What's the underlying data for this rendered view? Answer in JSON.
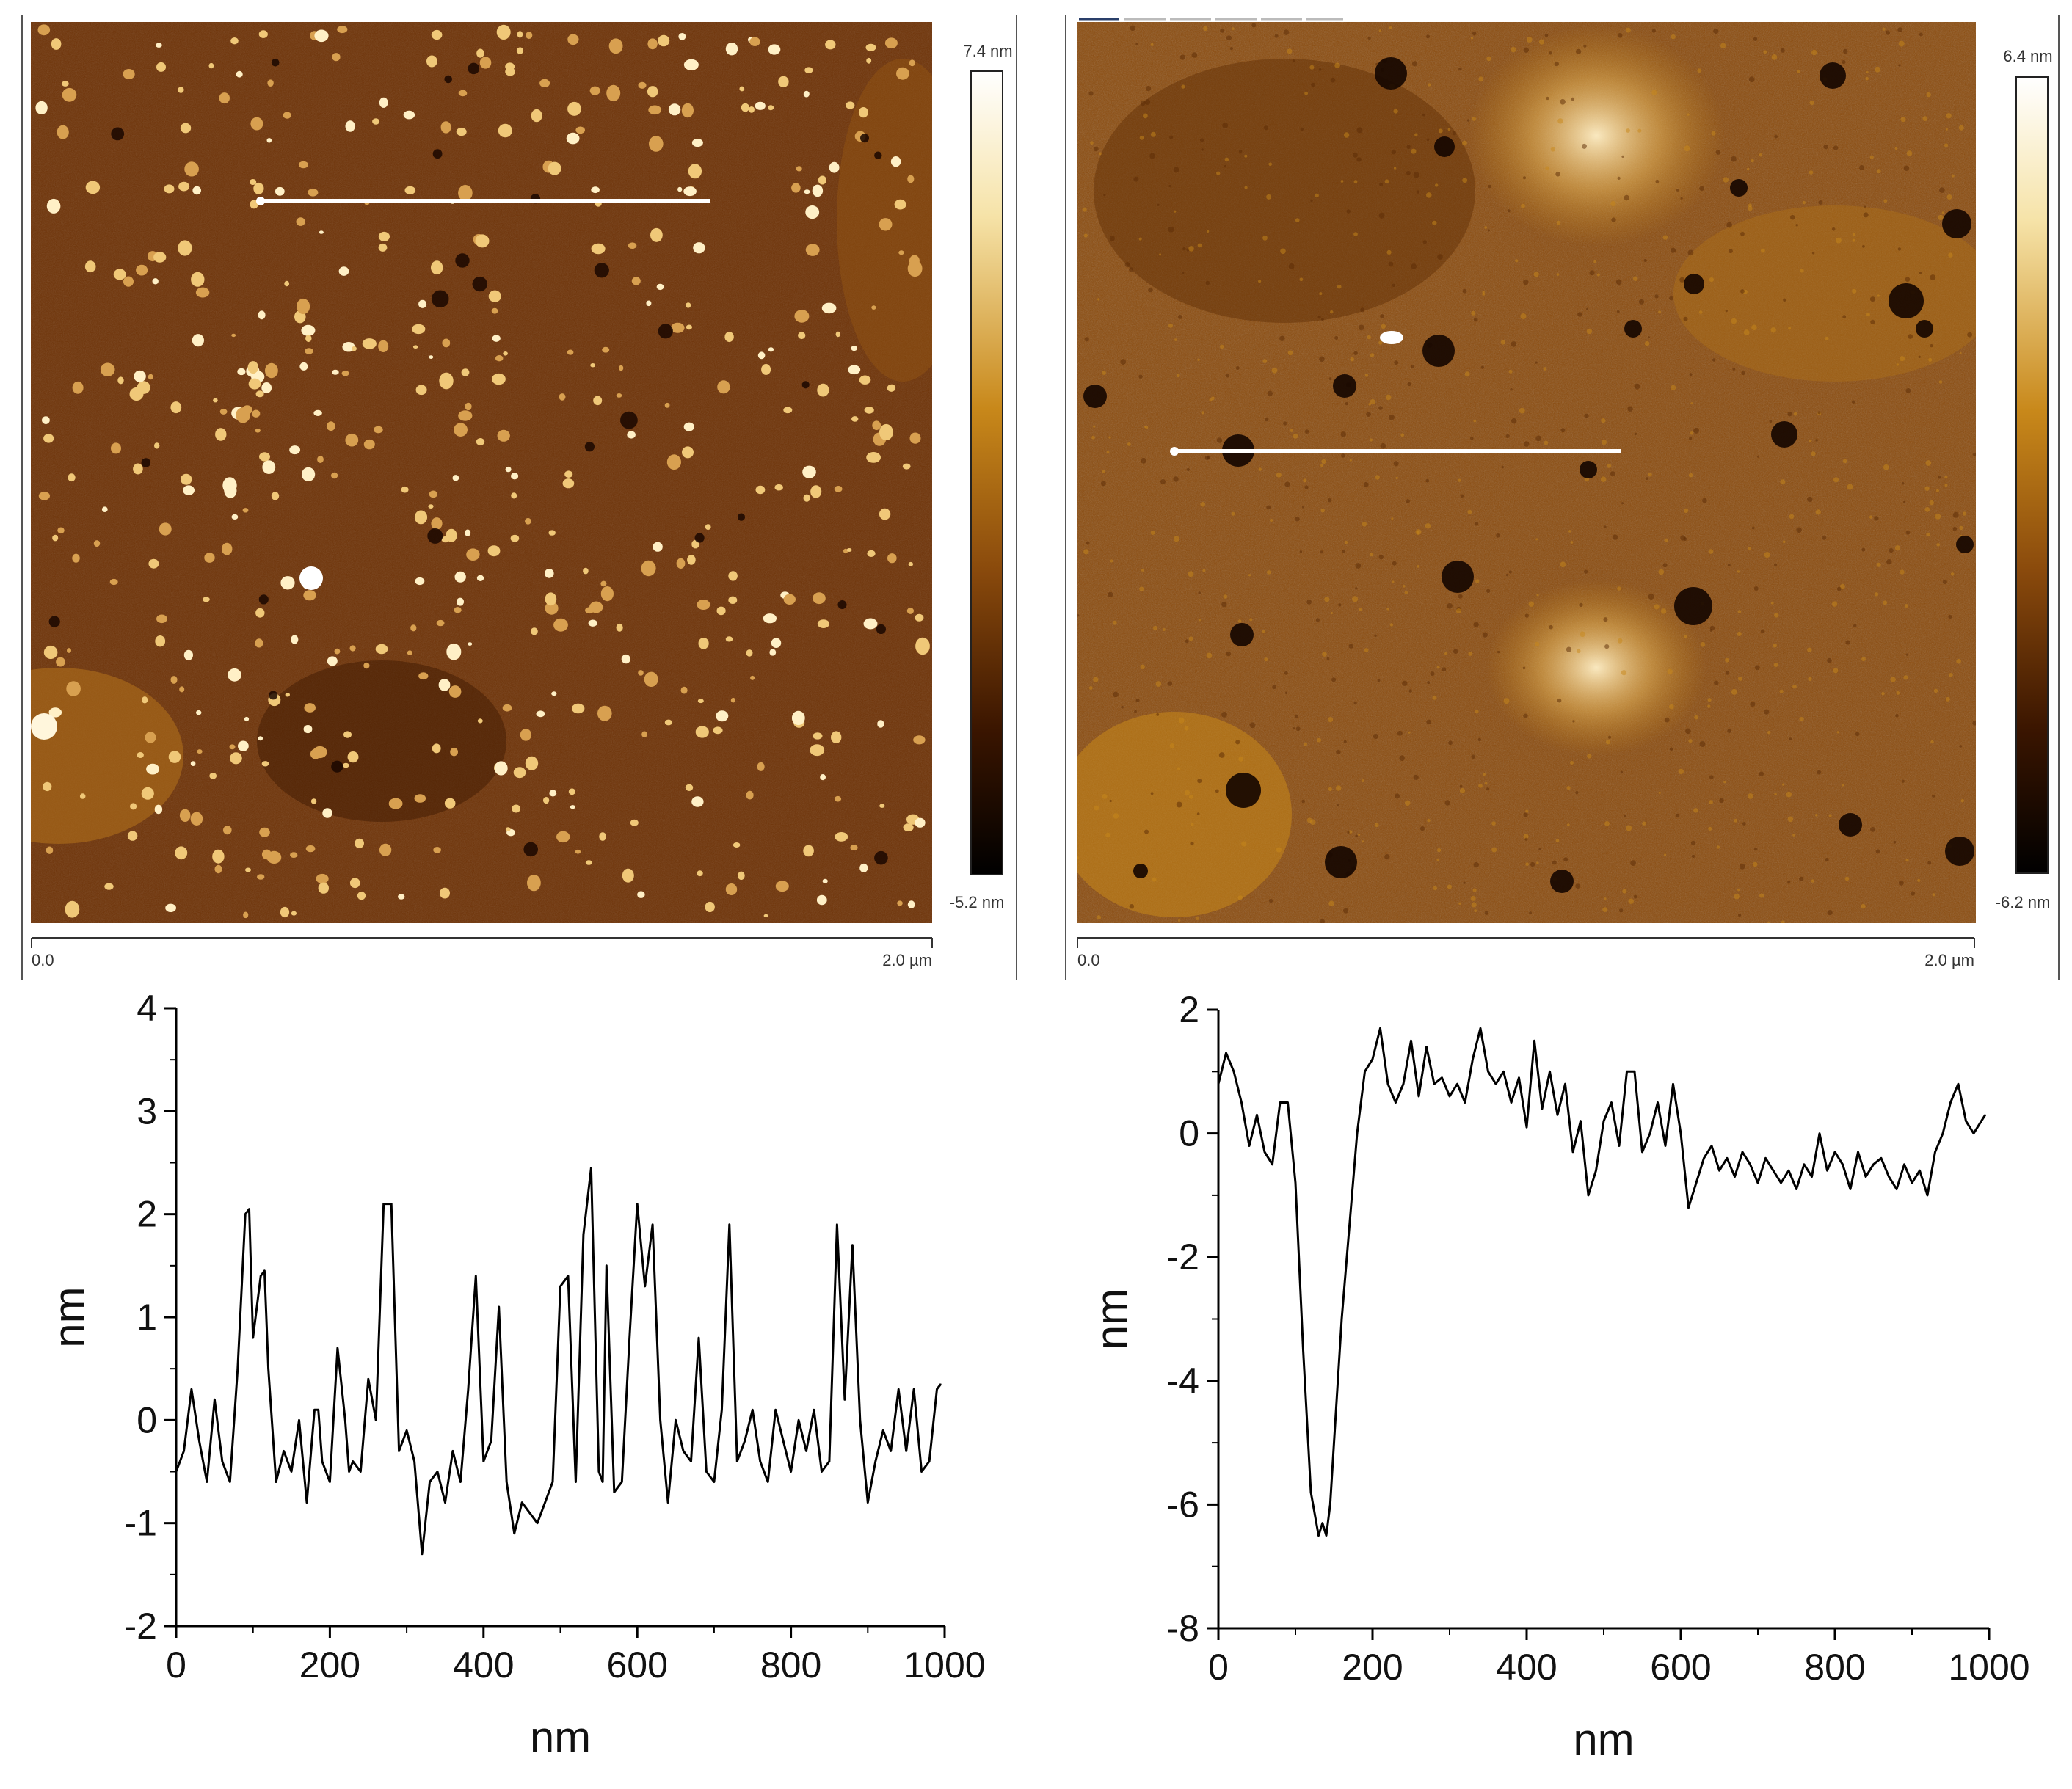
{
  "afm_images": [
    {
      "name": "left",
      "colorbar_max": "7.4 nm",
      "colorbar_min": "-5.2 nm",
      "scale_start": "0.0",
      "scale_end": "2.0 µm",
      "base_color": "#6e3206",
      "dark_color": "#1a0700",
      "bright_color": "#fff4d0",
      "feature": "grains"
    },
    {
      "name": "right",
      "colorbar_max": "6.4 nm",
      "colorbar_min": "-6.2 nm",
      "scale_start": "0.0",
      "scale_end": "2.0 µm",
      "base_color": "#8a4a0c",
      "dark_color": "#1a0700",
      "bright_color": "#fff4d0",
      "feature": "pits"
    }
  ],
  "chart_data": [
    {
      "type": "line",
      "xlabel": "nm",
      "ylabel": "nm",
      "xlim": [
        0,
        1000
      ],
      "ylim": [
        -2,
        4
      ],
      "xticks": [
        "0",
        "200",
        "400",
        "600",
        "800",
        "1000"
      ],
      "yticks": [
        "-2",
        "-1",
        "0",
        "1",
        "2",
        "3",
        "4"
      ],
      "x": [
        0,
        10,
        20,
        30,
        40,
        50,
        60,
        70,
        80,
        90,
        95,
        100,
        110,
        115,
        120,
        130,
        140,
        150,
        160,
        170,
        180,
        185,
        190,
        200,
        210,
        220,
        225,
        230,
        240,
        250,
        260,
        270,
        280,
        290,
        295,
        300,
        310,
        320,
        330,
        340,
        350,
        360,
        370,
        380,
        390,
        400,
        410,
        420,
        430,
        440,
        450,
        460,
        470,
        480,
        490,
        500,
        510,
        520,
        530,
        540,
        550,
        555,
        560,
        570,
        580,
        590,
        600,
        610,
        620,
        630,
        640,
        650,
        660,
        670,
        680,
        690,
        700,
        710,
        720,
        730,
        740,
        750,
        760,
        770,
        780,
        790,
        800,
        810,
        820,
        830,
        840,
        850,
        860,
        870,
        880,
        890,
        900,
        910,
        920,
        930,
        940,
        950,
        960,
        970,
        980,
        990,
        995
      ],
      "y": [
        -0.5,
        -0.3,
        0.3,
        -0.2,
        -0.6,
        0.2,
        -0.4,
        -0.6,
        0.5,
        2.0,
        2.05,
        0.8,
        1.4,
        1.45,
        0.5,
        -0.6,
        -0.3,
        -0.5,
        0.0,
        -0.8,
        0.1,
        0.1,
        -0.4,
        -0.6,
        0.7,
        0.0,
        -0.5,
        -0.4,
        -0.5,
        0.4,
        0.0,
        2.1,
        2.1,
        -0.3,
        -0.2,
        -0.1,
        -0.4,
        -1.3,
        -0.6,
        -0.5,
        -0.8,
        -0.3,
        -0.6,
        0.3,
        1.4,
        -0.4,
        -0.2,
        1.1,
        -0.6,
        -1.1,
        -0.8,
        -0.9,
        -1.0,
        -0.8,
        -0.6,
        1.3,
        1.4,
        -0.6,
        1.8,
        2.45,
        -0.5,
        -0.6,
        1.5,
        -0.7,
        -0.6,
        0.8,
        2.1,
        1.3,
        1.9,
        0.0,
        -0.8,
        0.0,
        -0.3,
        -0.4,
        0.8,
        -0.5,
        -0.6,
        0.1,
        1.9,
        -0.4,
        -0.2,
        0.1,
        -0.4,
        -0.6,
        0.1,
        -0.2,
        -0.5,
        0.0,
        -0.3,
        0.1,
        -0.5,
        -0.4,
        1.9,
        0.2,
        1.7,
        0.0,
        -0.8,
        -0.4,
        -0.1,
        -0.3,
        0.3,
        -0.3,
        0.3,
        -0.5,
        -0.4,
        0.3,
        0.35
      ]
    },
    {
      "type": "line",
      "xlabel": "nm",
      "ylabel": "nm",
      "xlim": [
        0,
        1000
      ],
      "ylim": [
        -8,
        2
      ],
      "xticks": [
        "0",
        "200",
        "400",
        "600",
        "800",
        "1000"
      ],
      "yticks": [
        "-8",
        "-6",
        "-4",
        "-2",
        "0",
        "2"
      ],
      "x": [
        0,
        10,
        20,
        30,
        40,
        50,
        60,
        70,
        80,
        90,
        100,
        110,
        120,
        130,
        135,
        140,
        145,
        150,
        160,
        170,
        180,
        190,
        200,
        210,
        220,
        230,
        240,
        250,
        260,
        270,
        280,
        290,
        300,
        310,
        320,
        330,
        340,
        350,
        360,
        370,
        380,
        390,
        400,
        410,
        420,
        430,
        440,
        450,
        460,
        470,
        480,
        490,
        500,
        510,
        520,
        530,
        540,
        550,
        560,
        570,
        580,
        590,
        600,
        610,
        620,
        630,
        640,
        650,
        660,
        670,
        680,
        690,
        700,
        710,
        720,
        730,
        740,
        750,
        760,
        770,
        780,
        790,
        800,
        810,
        820,
        830,
        840,
        850,
        860,
        870,
        880,
        890,
        900,
        910,
        920,
        930,
        940,
        950,
        960,
        970,
        980,
        990,
        995
      ],
      "y": [
        0.8,
        1.3,
        1.0,
        0.5,
        -0.2,
        0.3,
        -0.3,
        -0.5,
        0.5,
        0.5,
        -0.8,
        -3.5,
        -5.8,
        -6.5,
        -6.3,
        -6.5,
        -6.0,
        -5.0,
        -3.0,
        -1.5,
        0.0,
        1.0,
        1.2,
        1.7,
        0.8,
        0.5,
        0.8,
        1.5,
        0.6,
        1.4,
        0.8,
        0.9,
        0.6,
        0.8,
        0.5,
        1.2,
        1.7,
        1.0,
        0.8,
        1.0,
        0.5,
        0.9,
        0.1,
        1.5,
        0.4,
        1.0,
        0.3,
        0.8,
        -0.3,
        0.2,
        -1.0,
        -0.6,
        0.2,
        0.5,
        -0.2,
        1.0,
        1.0,
        -0.3,
        0.0,
        0.5,
        -0.2,
        0.8,
        0.0,
        -1.2,
        -0.8,
        -0.4,
        -0.2,
        -0.6,
        -0.4,
        -0.7,
        -0.3,
        -0.5,
        -0.8,
        -0.4,
        -0.6,
        -0.8,
        -0.6,
        -0.9,
        -0.5,
        -0.7,
        0.0,
        -0.6,
        -0.3,
        -0.5,
        -0.9,
        -0.3,
        -0.7,
        -0.5,
        -0.4,
        -0.7,
        -0.9,
        -0.5,
        -0.8,
        -0.6,
        -1.0,
        -0.3,
        0.0,
        0.5,
        0.8,
        0.2,
        0.0,
        0.2,
        0.3
      ]
    }
  ]
}
